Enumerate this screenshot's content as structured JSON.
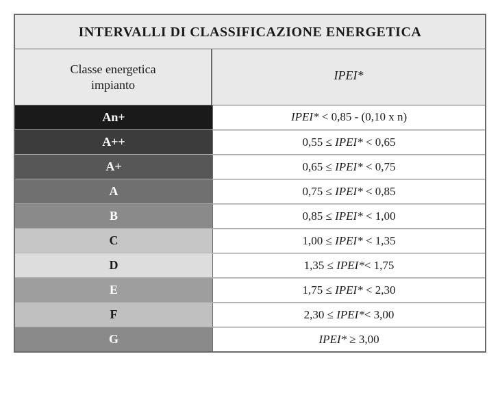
{
  "table": {
    "type": "table",
    "title": "INTERVALLI DI CLASSIFICAZIONE ENERGETICA",
    "header_left_line1": "Classe energetica",
    "header_left_line2": "impianto",
    "header_right": "IPEI*",
    "background_color": "#ffffff",
    "header_bg": "#e9e9e9",
    "border_color": "#6a6a6a",
    "columns": [
      "class",
      "range"
    ],
    "column_widths_pct": [
      42,
      58
    ],
    "title_fontsize": 20,
    "header_fontsize": 18,
    "cell_fontsize": 17,
    "rows": [
      {
        "class": "An+",
        "bg": "#1a1a1a",
        "fg": "#ffffff",
        "range_pre": "",
        "range_post": " < 0,85 - (0,10 x n)"
      },
      {
        "class": "A++",
        "bg": "#3c3c3c",
        "fg": "#ffffff",
        "range_pre": "0,55 ≤ ",
        "range_post": " < 0,65"
      },
      {
        "class": "A+",
        "bg": "#575757",
        "fg": "#ffffff",
        "range_pre": "0,65 ≤ ",
        "range_post": " < 0,75"
      },
      {
        "class": "A",
        "bg": "#707070",
        "fg": "#ffffff",
        "range_pre": "0,75 ≤ ",
        "range_post": " < 0,85"
      },
      {
        "class": "B",
        "bg": "#8a8a8a",
        "fg": "#ffffff",
        "range_pre": "0,85 ≤ ",
        "range_post": " < 1,00"
      },
      {
        "class": "C",
        "bg": "#c6c6c6",
        "fg": "#1a1a1a",
        "range_pre": "1,00 ≤ ",
        "range_post": " <  1,35"
      },
      {
        "class": "D",
        "bg": "#dddddd",
        "fg": "#1a1a1a",
        "range_pre": "1,35 ≤ ",
        "range_post": "<  1,75"
      },
      {
        "class": "E",
        "bg": "#9e9e9e",
        "fg": "#ffffff",
        "range_pre": "1,75 ≤ ",
        "range_post": " <  2,30"
      },
      {
        "class": "F",
        "bg": "#c0c0c0",
        "fg": "#1a1a1a",
        "range_pre": "2,30 ≤ ",
        "range_post": "<  3,00"
      },
      {
        "class": "G",
        "bg": "#8a8a8a",
        "fg": "#ffffff",
        "range_pre": "",
        "range_post": " ≥ 3,00"
      }
    ]
  }
}
